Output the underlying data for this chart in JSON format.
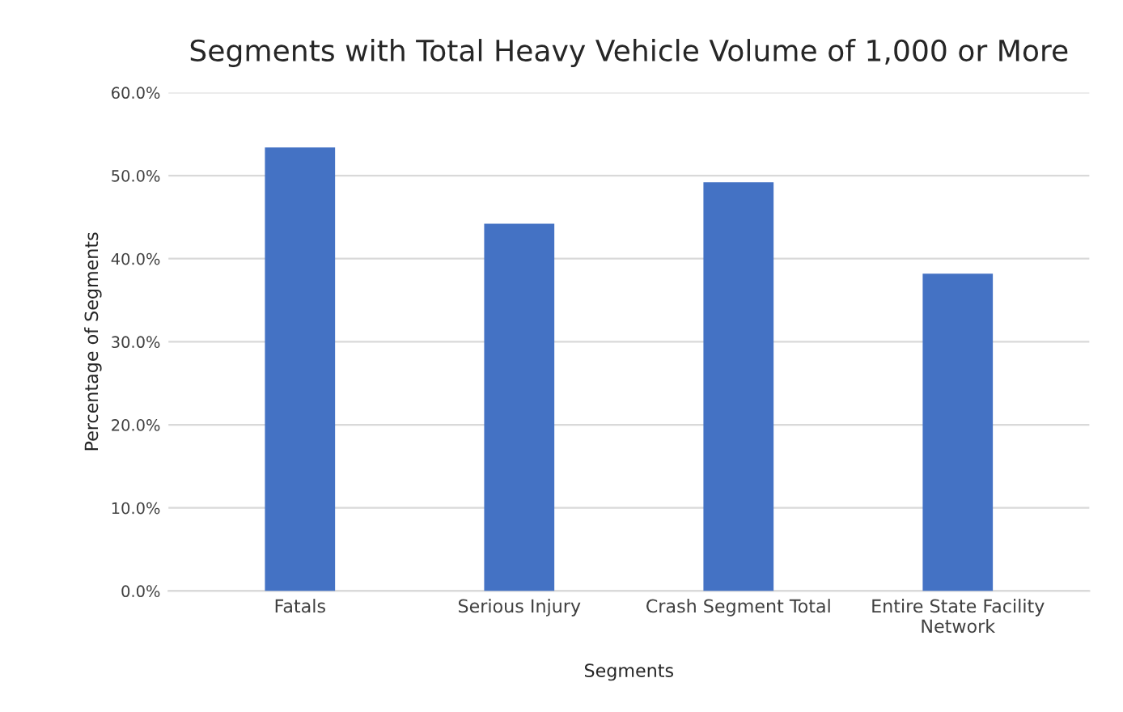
{
  "chart_data": {
    "type": "bar",
    "title": "Segments with Total Heavy Vehicle Volume of 1,000 or More",
    "xlabel": "Segments",
    "ylabel": "Percentage of Segments",
    "categories": [
      "Fatals",
      "Serious Injury",
      "Crash Segment Total",
      "Entire State Facility\nNetwork"
    ],
    "values": [
      53.4,
      44.2,
      49.2,
      38.2
    ],
    "color": "#4472c4",
    "ylim": [
      0,
      60
    ],
    "yticks": [
      {
        "value": 0,
        "label": "0.0%"
      },
      {
        "value": 10,
        "label": "10.0%"
      },
      {
        "value": 20,
        "label": "20.0%"
      },
      {
        "value": 30,
        "label": "30.0%"
      },
      {
        "value": 40,
        "label": "40.0%"
      },
      {
        "value": 50,
        "label": "50.0%"
      },
      {
        "value": 60,
        "label": "60.0%"
      }
    ],
    "grid": "y",
    "legend": false
  }
}
